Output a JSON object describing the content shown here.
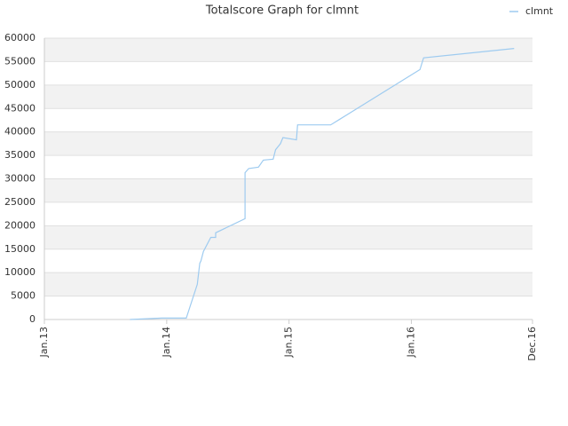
{
  "chart_data": {
    "type": "line",
    "title": "Totalscore Graph for clmnt",
    "x": [
      2013.7,
      2013.96,
      2014.16,
      2014.25,
      2014.27,
      2014.28,
      2014.3,
      2014.36,
      2014.4,
      2014.4,
      2014.64,
      2014.64,
      2014.67,
      2014.75,
      2014.79,
      2014.87,
      2014.89,
      2014.93,
      2014.95,
      2015.06,
      2015.07,
      2015.34,
      2016.07,
      2016.1,
      2016.84
    ],
    "series": [
      {
        "name": "clmnt",
        "color": "#9ecbf0",
        "values": [
          0,
          300,
          300,
          7500,
          12000,
          12500,
          14500,
          17500,
          17500,
          18500,
          21500,
          31300,
          32200,
          32500,
          34000,
          34200,
          36200,
          37500,
          38800,
          38300,
          41500,
          41500,
          53300,
          55800,
          57800
        ]
      }
    ],
    "xlim": [
      2013,
      2016.99
    ],
    "xticks": [
      {
        "value": 2013,
        "label": "Jan.13"
      },
      {
        "value": 2014,
        "label": "Jan.14"
      },
      {
        "value": 2015,
        "label": "Jan.15"
      },
      {
        "value": 2016,
        "label": "Jan.16"
      },
      {
        "value": 2016.99,
        "label": "Dec.16"
      }
    ],
    "ylim": [
      0,
      60000
    ],
    "yticks": [
      0,
      5000,
      10000,
      15000,
      20000,
      25000,
      30000,
      35000,
      40000,
      45000,
      50000,
      55000,
      60000
    ],
    "grid": true,
    "legend": "top-right"
  }
}
